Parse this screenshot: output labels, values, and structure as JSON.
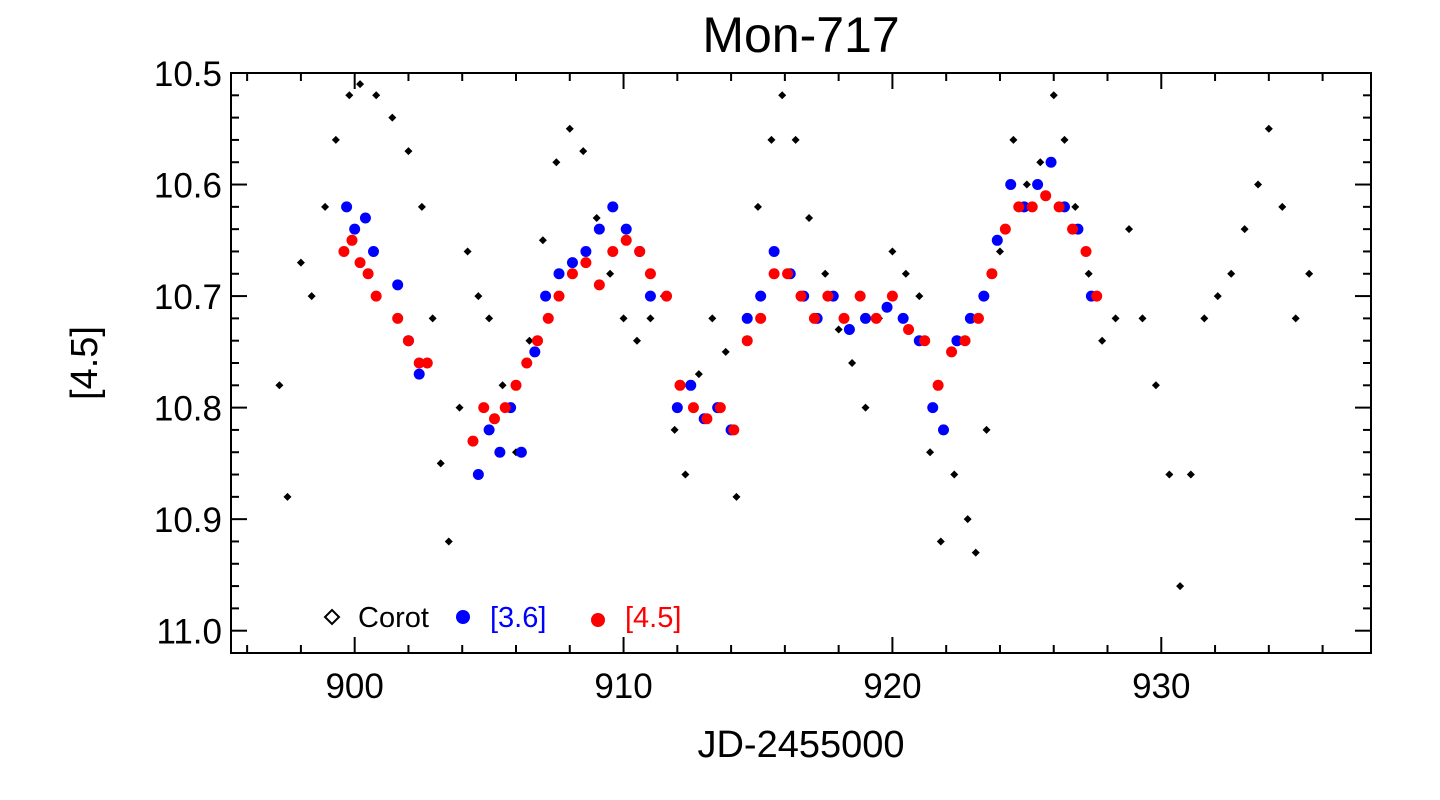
{
  "chart_data": {
    "type": "scatter",
    "title": "Mon-717",
    "xlabel": "JD-2455000",
    "ylabel": "[4.5]",
    "xlim": [
      895.4,
      937.8
    ],
    "ylim": [
      10.5,
      11.02
    ],
    "y_inverted": true,
    "x_ticks": [
      900,
      910,
      920,
      930
    ],
    "x_tick_labels": [
      "900",
      "910",
      "920",
      "930"
    ],
    "y_ticks": [
      10.5,
      10.6,
      10.7,
      10.8,
      10.9,
      11.0
    ],
    "y_tick_labels": [
      "10.5",
      "10.6",
      "10.7",
      "10.8",
      "10.9",
      "11.0"
    ],
    "legend_position": "bottom-left",
    "series": [
      {
        "name": "Corot",
        "color": "#000000",
        "marker": "diamond",
        "x": [
          897.2,
          897.5,
          898.0,
          898.4,
          898.9,
          899.3,
          899.8,
          900.2,
          900.8,
          901.4,
          902.0,
          902.5,
          902.9,
          903.2,
          903.5,
          903.9,
          904.2,
          904.6,
          905.0,
          905.5,
          906.0,
          906.5,
          907.0,
          907.5,
          908.0,
          908.5,
          909.0,
          909.5,
          910.0,
          910.5,
          911.0,
          911.5,
          911.9,
          912.3,
          912.8,
          913.3,
          913.8,
          914.2,
          914.6,
          915.0,
          915.5,
          915.9,
          916.4,
          916.9,
          917.5,
          918.0,
          918.5,
          919.0,
          919.5,
          920.0,
          920.5,
          921.0,
          921.4,
          921.8,
          922.3,
          922.8,
          923.1,
          923.5,
          924.0,
          924.5,
          925.0,
          925.5,
          926.0,
          926.4,
          926.8,
          927.3,
          927.8,
          928.3,
          928.8,
          929.3,
          929.8,
          930.3,
          930.7,
          931.1,
          931.6,
          932.1,
          932.6,
          933.1,
          933.6,
          934.0,
          934.5,
          935.0,
          935.5
        ],
        "y": [
          10.78,
          10.88,
          10.67,
          10.7,
          10.62,
          10.56,
          10.52,
          10.51,
          10.52,
          10.54,
          10.57,
          10.62,
          10.72,
          10.85,
          10.92,
          10.8,
          10.66,
          10.7,
          10.72,
          10.78,
          10.84,
          10.74,
          10.65,
          10.58,
          10.55,
          10.57,
          10.63,
          10.68,
          10.72,
          10.74,
          10.72,
          10.7,
          10.82,
          10.86,
          10.77,
          10.72,
          10.75,
          10.88,
          10.72,
          10.62,
          10.56,
          10.52,
          10.56,
          10.63,
          10.68,
          10.73,
          10.76,
          10.8,
          10.72,
          10.66,
          10.68,
          10.7,
          10.84,
          10.92,
          10.86,
          10.9,
          10.93,
          10.82,
          10.66,
          10.56,
          10.6,
          10.58,
          10.52,
          10.56,
          10.62,
          10.68,
          10.74,
          10.72,
          10.64,
          10.72,
          10.78,
          10.86,
          10.96,
          10.86,
          10.72,
          10.7,
          10.68,
          10.64,
          10.6,
          10.55,
          10.62,
          10.72,
          10.68
        ]
      },
      {
        "name": "[3.6]",
        "color": "#0000ff",
        "marker": "filled-circle",
        "x": [
          899.7,
          900.0,
          900.4,
          900.7,
          901.6,
          902.0,
          902.4,
          904.6,
          905.0,
          905.4,
          905.8,
          906.2,
          906.7,
          907.1,
          907.6,
          908.1,
          908.6,
          909.1,
          909.6,
          910.1,
          910.6,
          911.0,
          912.0,
          912.5,
          913.0,
          913.5,
          914.0,
          914.6,
          915.1,
          915.6,
          916.2,
          916.7,
          917.2,
          917.8,
          918.4,
          919.0,
          919.8,
          920.4,
          921.0,
          921.5,
          921.9,
          922.4,
          922.9,
          923.4,
          923.9,
          924.4,
          924.9,
          925.4,
          925.9,
          926.4,
          926.9,
          927.4
        ],
        "y": [
          10.62,
          10.64,
          10.63,
          10.66,
          10.69,
          10.74,
          10.77,
          10.86,
          10.82,
          10.84,
          10.8,
          10.84,
          10.75,
          10.7,
          10.68,
          10.67,
          10.66,
          10.64,
          10.62,
          10.64,
          10.66,
          10.7,
          10.8,
          10.78,
          10.81,
          10.8,
          10.82,
          10.72,
          10.7,
          10.66,
          10.68,
          10.7,
          10.72,
          10.7,
          10.73,
          10.72,
          10.71,
          10.72,
          10.74,
          10.8,
          10.82,
          10.74,
          10.72,
          10.7,
          10.65,
          10.6,
          10.62,
          10.6,
          10.58,
          10.62,
          10.64,
          10.7
        ]
      },
      {
        "name": "[4.5]",
        "color": "#ff0000",
        "marker": "filled-circle",
        "x": [
          899.6,
          899.9,
          900.2,
          900.5,
          900.8,
          901.6,
          902.0,
          902.4,
          902.7,
          904.4,
          904.8,
          905.2,
          905.6,
          906.0,
          906.4,
          906.8,
          907.2,
          907.6,
          908.1,
          908.6,
          909.1,
          909.6,
          910.1,
          910.6,
          911.0,
          911.6,
          912.1,
          912.6,
          913.1,
          913.6,
          914.1,
          914.6,
          915.1,
          915.6,
          916.1,
          916.6,
          917.1,
          917.6,
          918.2,
          918.8,
          919.4,
          920.0,
          920.6,
          921.2,
          921.7,
          922.2,
          922.7,
          923.2,
          923.7,
          924.2,
          924.7,
          925.2,
          925.7,
          926.2,
          926.7,
          927.2,
          927.6
        ],
        "y": [
          10.66,
          10.65,
          10.67,
          10.68,
          10.7,
          10.72,
          10.74,
          10.76,
          10.76,
          10.83,
          10.8,
          10.81,
          10.8,
          10.78,
          10.76,
          10.74,
          10.72,
          10.7,
          10.68,
          10.67,
          10.69,
          10.66,
          10.65,
          10.66,
          10.68,
          10.7,
          10.78,
          10.8,
          10.81,
          10.8,
          10.82,
          10.74,
          10.72,
          10.68,
          10.68,
          10.7,
          10.72,
          10.7,
          10.72,
          10.7,
          10.72,
          10.7,
          10.73,
          10.74,
          10.78,
          10.75,
          10.74,
          10.72,
          10.68,
          10.64,
          10.62,
          10.62,
          10.61,
          10.62,
          10.64,
          10.66,
          10.7
        ]
      }
    ]
  }
}
